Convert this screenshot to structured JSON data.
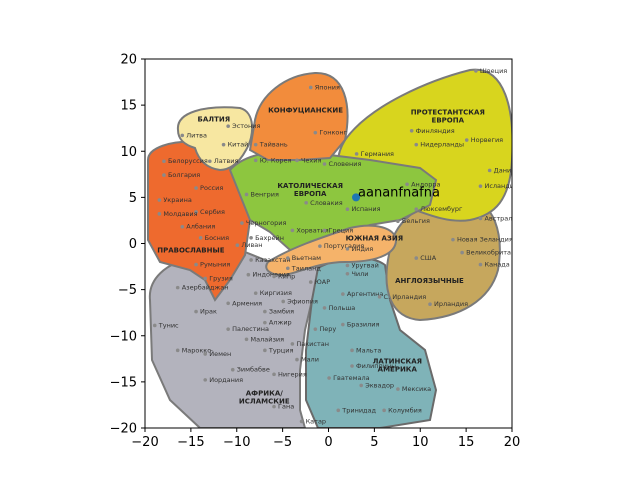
{
  "chart_data": {
    "type": "scatter",
    "xlim": [
      -20,
      20
    ],
    "ylim": [
      -20,
      20
    ],
    "xticks": [
      "−20",
      "−15",
      "−10",
      "−5",
      "0",
      "5",
      "10",
      "15",
      "20"
    ],
    "yticks": [
      "−20",
      "−15",
      "−10",
      "−5",
      "0",
      "5",
      "10",
      "15",
      "20"
    ],
    "grid": false,
    "points": [
      {
        "x": 3,
        "y": 5,
        "label": "aananfnafna",
        "color": "#1f77b4"
      }
    ],
    "background_image": {
      "regions": [
        {
          "label": "БАЛТИЯ",
          "color": "#f7e7a1"
        },
        {
          "label": "КОНФУЦИАНСКИЕ",
          "color": "#f28c3c"
        },
        {
          "label": "ПРОТЕСТАНТСКАЯ ЕВРОПА",
          "color": "#d8d51e"
        },
        {
          "label": "КАТОЛИЧЕСКАЯ ЕВРОПА",
          "color": "#8dc63f"
        },
        {
          "label": "ПРАВОСЛАВНЫЕ",
          "color": "#ee6a2e"
        },
        {
          "label": "ЮЖНАЯ АЗИЯ",
          "color": "#f5b36a"
        },
        {
          "label": "АНГЛОЯЗЫЧНЫЕ",
          "color": "#c6a75d"
        },
        {
          "label": "АФРИКА/ ИСЛАМСКИЕ",
          "color": "#b3b3bd"
        },
        {
          "label": "ЛАТИНСКАЯ АМЕРИКА",
          "color": "#7fb3b8"
        }
      ],
      "countries": [
        {
          "name": "Япония",
          "x": -1.5,
          "y": 16.7
        },
        {
          "name": "Швеция",
          "x": 16.5,
          "y": 18.5
        },
        {
          "name": "Эстония",
          "x": -10.5,
          "y": 12.5
        },
        {
          "name": "Литва",
          "x": -15.5,
          "y": 11.5
        },
        {
          "name": "Китай",
          "x": -11,
          "y": 10.5
        },
        {
          "name": "Тайвань",
          "x": -7.5,
          "y": 10.5
        },
        {
          "name": "Гонконг",
          "x": -1,
          "y": 11.8
        },
        {
          "name": "Финляндия",
          "x": 9.5,
          "y": 12
        },
        {
          "name": "Норвегия",
          "x": 15.5,
          "y": 11
        },
        {
          "name": "Нидерланды",
          "x": 10,
          "y": 10.5
        },
        {
          "name": "Германия",
          "x": 3.5,
          "y": 9.5
        },
        {
          "name": "Латвия",
          "x": -12.5,
          "y": 8.7
        },
        {
          "name": "Ю. Корея",
          "x": -7.5,
          "y": 8.8
        },
        {
          "name": "Чехия",
          "x": -3,
          "y": 8.8
        },
        {
          "name": "Словения",
          "x": 0,
          "y": 8.4
        },
        {
          "name": "Белоруссия",
          "x": -17.5,
          "y": 8.7
        },
        {
          "name": "Болгария",
          "x": -17.5,
          "y": 7.2
        },
        {
          "name": "Дания",
          "x": 18,
          "y": 7.7
        },
        {
          "name": "Россия",
          "x": -14,
          "y": 5.8
        },
        {
          "name": "Венгрия",
          "x": -8.5,
          "y": 5.1
        },
        {
          "name": "Андорра",
          "x": 9,
          "y": 6.2
        },
        {
          "name": "Исландия",
          "x": 17,
          "y": 6
        },
        {
          "name": "Украина",
          "x": -18,
          "y": 4.5
        },
        {
          "name": "Сербия",
          "x": -14,
          "y": 3.2
        },
        {
          "name": "Словакия",
          "x": -2,
          "y": 4.2
        },
        {
          "name": "Испания",
          "x": 2.5,
          "y": 3.5
        },
        {
          "name": "Люксембург",
          "x": 10,
          "y": 3.5
        },
        {
          "name": "Молдавия",
          "x": -18,
          "y": 3
        },
        {
          "name": "Бельгия",
          "x": 8,
          "y": 2.2
        },
        {
          "name": "Австралия",
          "x": 17,
          "y": 2.5
        },
        {
          "name": "Албания",
          "x": -15.5,
          "y": 1.6
        },
        {
          "name": "Черногория",
          "x": -9,
          "y": 2
        },
        {
          "name": "Босния",
          "x": -13.5,
          "y": 0.4
        },
        {
          "name": "Бахрейн",
          "x": -8,
          "y": 0.4
        },
        {
          "name": "Хорватия",
          "x": -3.5,
          "y": 1.2
        },
        {
          "name": "Греция",
          "x": 0,
          "y": 1.2
        },
        {
          "name": "Новая Зеландия",
          "x": 14,
          "y": 0.2
        },
        {
          "name": "Ливан",
          "x": -9.5,
          "y": -0.4
        },
        {
          "name": "Португалия",
          "x": -0.5,
          "y": -0.5
        },
        {
          "name": "Индия",
          "x": 2.5,
          "y": -0.8
        },
        {
          "name": "Великобритания",
          "x": 15,
          "y": -1.2
        },
        {
          "name": "Казахстан",
          "x": -8,
          "y": -2
        },
        {
          "name": "Вьетнам",
          "x": -4,
          "y": -1.8
        },
        {
          "name": "США",
          "x": 10,
          "y": -1.8
        },
        {
          "name": "Уругвай",
          "x": 2.5,
          "y": -2.6
        },
        {
          "name": "Канада",
          "x": 17,
          "y": -2.5
        },
        {
          "name": "Румыния",
          "x": -14,
          "y": -2.5
        },
        {
          "name": "Таиланд",
          "x": -4,
          "y": -2.9
        },
        {
          "name": "Индонезия",
          "x": -8.3,
          "y": -3.6
        },
        {
          "name": "Кипр",
          "x": -5.5,
          "y": -3.8
        },
        {
          "name": "Чили",
          "x": 2.5,
          "y": -3.5
        },
        {
          "name": "Грузия",
          "x": -13,
          "y": -4
        },
        {
          "name": "ЮАР",
          "x": -1.5,
          "y": -4.4
        },
        {
          "name": "Азербайджан",
          "x": -16,
          "y": -5
        },
        {
          "name": "Аргентина",
          "x": 2,
          "y": -5.7
        },
        {
          "name": "Киргизия",
          "x": -7.5,
          "y": -5.6
        },
        {
          "name": "С. Ирландия",
          "x": 6,
          "y": -6
        },
        {
          "name": "Армения",
          "x": -10.5,
          "y": -6.7
        },
        {
          "name": "Эфиопия",
          "x": -4.5,
          "y": -6.5
        },
        {
          "name": "Польша",
          "x": 0,
          "y": -7.2
        },
        {
          "name": "Ирландия",
          "x": 11.5,
          "y": -6.8
        },
        {
          "name": "Ирак",
          "x": -14,
          "y": -7.6
        },
        {
          "name": "Замбия",
          "x": -6.5,
          "y": -7.6
        },
        {
          "name": "Алжир",
          "x": -6.5,
          "y": -8.8
        },
        {
          "name": "Тунис",
          "x": -18.5,
          "y": -9.1
        },
        {
          "name": "Палестина",
          "x": -10.5,
          "y": -9.5
        },
        {
          "name": "Перу",
          "x": -1,
          "y": -9.5
        },
        {
          "name": "Бразилия",
          "x": 2,
          "y": -9
        },
        {
          "name": "Малайзия",
          "x": -8.5,
          "y": -10.6
        },
        {
          "name": "Пакистан",
          "x": -3.5,
          "y": -11.1
        },
        {
          "name": "Марокко",
          "x": -16,
          "y": -11.8
        },
        {
          "name": "Йемен",
          "x": -13,
          "y": -12.2
        },
        {
          "name": "Турция",
          "x": -6.5,
          "y": -11.8
        },
        {
          "name": "Мальта",
          "x": 3,
          "y": -11.8
        },
        {
          "name": "Мали",
          "x": -3,
          "y": -12.8
        },
        {
          "name": "Филиппины",
          "x": 3,
          "y": -13.5
        },
        {
          "name": "Зимбабве",
          "x": -10,
          "y": -13.9
        },
        {
          "name": "Нигерия",
          "x": -5.5,
          "y": -14.4
        },
        {
          "name": "Иордания",
          "x": -13,
          "y": -15
        },
        {
          "name": "Гватемала",
          "x": 0.5,
          "y": -14.8
        },
        {
          "name": "Эквадор",
          "x": 4,
          "y": -15.6
        },
        {
          "name": "Мексика",
          "x": 8,
          "y": -16
        },
        {
          "name": "Гана",
          "x": -5.5,
          "y": -17.9
        },
        {
          "name": "Тринидад",
          "x": 1.5,
          "y": -18.3
        },
        {
          "name": "Колумбия",
          "x": 6.5,
          "y": -18.3
        },
        {
          "name": "Катар",
          "x": -2.5,
          "y": -19.5
        }
      ]
    }
  }
}
